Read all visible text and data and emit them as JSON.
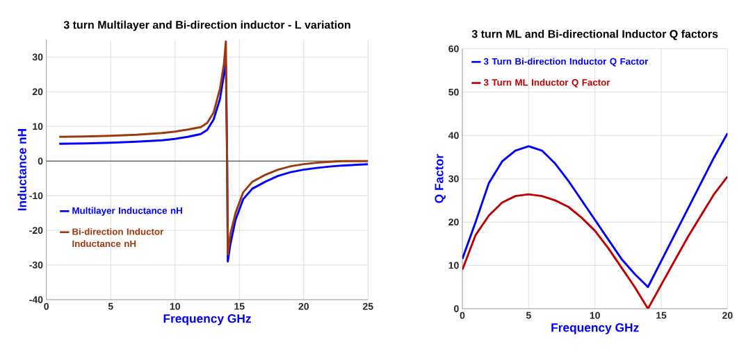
{
  "chart_data": [
    {
      "type": "line",
      "title": "3 turn Multilayer and Bi-direction inductor - L variation",
      "xlabel": "Frequency GHz",
      "ylabel": "Inductance nH",
      "xlim": [
        0,
        25
      ],
      "ylim": [
        -40,
        35
      ],
      "xticks": [
        0,
        5,
        10,
        15,
        20,
        25
      ],
      "yticks": [
        -40,
        -30,
        -20,
        -10,
        0,
        10,
        20,
        30
      ],
      "grid": true,
      "legend": "left",
      "series": [
        {
          "name": "Multilayer Inductance nH",
          "color": "#0000ff",
          "x": [
            1,
            3,
            5,
            7,
            9,
            10,
            11,
            12,
            12.5,
            13,
            13.5,
            13.8,
            13.95,
            14.05,
            14.1,
            14.3,
            14.7,
            15.3,
            16,
            17,
            18,
            19,
            20,
            21,
            22,
            23,
            24,
            25
          ],
          "values": [
            5,
            5.1,
            5.3,
            5.6,
            6,
            6.4,
            7,
            7.8,
            9,
            12,
            18,
            25,
            28,
            0,
            -29,
            -24,
            -17,
            -11,
            -8,
            -6,
            -4.3,
            -3.2,
            -2.5,
            -2,
            -1.6,
            -1.3,
            -1.1,
            -0.9
          ]
        },
        {
          "name": "Bi-direction Inductor Inductance nH",
          "color": "#9c3a0e",
          "x": [
            1,
            3,
            5,
            7,
            9,
            10,
            11,
            12,
            12.5,
            13,
            13.5,
            13.8,
            13.95,
            14.05,
            14.1,
            14.3,
            14.7,
            15.3,
            16,
            17,
            18,
            19,
            20,
            21,
            22,
            23,
            24,
            25
          ],
          "values": [
            7,
            7.1,
            7.3,
            7.6,
            8.1,
            8.5,
            9.1,
            9.8,
            11,
            14,
            21,
            28,
            34.5,
            0,
            -27,
            -21,
            -15,
            -9,
            -6,
            -4,
            -2.5,
            -1.5,
            -0.9,
            -0.5,
            -0.2,
            0,
            0,
            0
          ]
        }
      ]
    },
    {
      "type": "line",
      "title": "3 turn ML and Bi-directional Inductor Q factors",
      "xlabel": "Frequency   GHz",
      "ylabel": "Q Factor",
      "xlim": [
        0,
        20
      ],
      "ylim": [
        0,
        60
      ],
      "xticks": [
        0,
        5,
        10,
        15,
        20
      ],
      "yticks": [
        0,
        10,
        20,
        30,
        40,
        50,
        60
      ],
      "grid": true,
      "legend": "top left",
      "series": [
        {
          "name": "3 Turn Bi-direction Inductor Q Factor",
          "color": "#0000ff",
          "x": [
            0,
            1,
            2,
            3,
            4,
            5,
            6,
            7,
            8,
            9,
            10,
            11,
            12,
            13,
            14,
            15,
            16,
            17,
            18,
            19,
            20
          ],
          "values": [
            11.5,
            20,
            29,
            34,
            36.5,
            37.5,
            36.5,
            33.5,
            29.5,
            25,
            20.5,
            16,
            11.5,
            8,
            5,
            11,
            17,
            23,
            29,
            35,
            40.5
          ]
        },
        {
          "name": "3 Turn ML  Inductor Q Factor",
          "color": "#c00000",
          "x": [
            0,
            1,
            2,
            3,
            4,
            5,
            6,
            7,
            8,
            9,
            10,
            11,
            12,
            13,
            14,
            15,
            16,
            17,
            18,
            19,
            20
          ],
          "values": [
            9,
            17,
            21.5,
            24.5,
            26,
            26.4,
            26,
            25,
            23.5,
            21,
            18,
            14,
            9.5,
            5,
            0,
            5.5,
            11,
            16.5,
            21.5,
            26.5,
            30.5
          ]
        }
      ]
    }
  ]
}
